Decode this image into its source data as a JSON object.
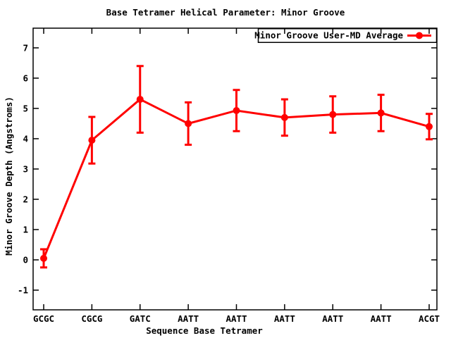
{
  "window": {
    "background": "#ffffff",
    "foreground": "#000000"
  },
  "chart_data": {
    "type": "line",
    "title": "Base Tetramer Helical Parameter: Minor Groove",
    "xlabel": "Sequence Base Tetramer",
    "ylabel": "Minor Groove Depth (Angstroms)",
    "legend": {
      "label": "Minor Groove User-MD Average",
      "position": "top-right-inside",
      "box": true
    },
    "categories": [
      "GCGC",
      "CGCG",
      "GATC",
      "AATT",
      "AATT",
      "AATT",
      "AATT",
      "AATT",
      "ACGT"
    ],
    "series": [
      {
        "name": "Minor Groove User-MD Average",
        "color": "#ff0000",
        "marker": "filled-circle",
        "style": "line-with-error-bars",
        "values": [
          0.05,
          3.95,
          5.3,
          4.5,
          4.93,
          4.7,
          4.8,
          4.85,
          4.4
        ],
        "error": [
          0.3,
          0.77,
          1.1,
          0.7,
          0.68,
          0.6,
          0.6,
          0.6,
          0.42
        ]
      }
    ],
    "ylim": [
      -1.65,
      7.65
    ],
    "yticks": [
      -1,
      0,
      1,
      2,
      3,
      4,
      5,
      6,
      7
    ],
    "grid": false,
    "axis_color": "#000000"
  }
}
